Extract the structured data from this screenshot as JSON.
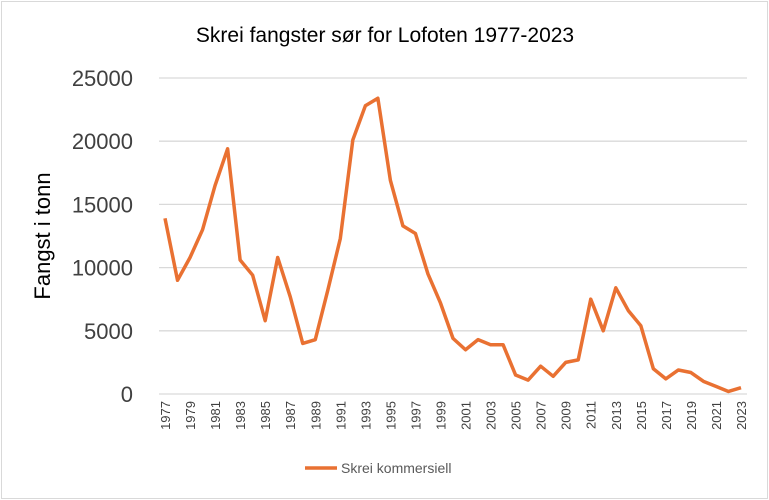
{
  "chart_data": {
    "type": "line",
    "title": "Skrei fangster sør for Lofoten 1977-2023",
    "xlabel": "",
    "ylabel": "Fangst i tonn",
    "ylim": [
      0,
      25000
    ],
    "yticks": [
      0,
      5000,
      10000,
      15000,
      20000,
      25000
    ],
    "grid": true,
    "legend": "bottom",
    "color": "#E97132",
    "x": [
      1977,
      1978,
      1979,
      1980,
      1981,
      1982,
      1983,
      1984,
      1985,
      1986,
      1987,
      1988,
      1989,
      1990,
      1991,
      1992,
      1993,
      1994,
      1995,
      1996,
      1997,
      1998,
      1999,
      2000,
      2001,
      2002,
      2003,
      2004,
      2005,
      2006,
      2007,
      2008,
      2009,
      2010,
      2011,
      2012,
      2013,
      2014,
      2015,
      2016,
      2017,
      2018,
      2019,
      2020,
      2021,
      2022,
      2023
    ],
    "xtick_labels": [
      "1977",
      "1979",
      "1981",
      "1983",
      "1985",
      "1987",
      "1989",
      "1991",
      "1993",
      "1995",
      "1997",
      "1999",
      "2001",
      "2003",
      "2005",
      "2007",
      "2009",
      "2011",
      "2013",
      "2015",
      "2017",
      "2019",
      "2021",
      "2023"
    ],
    "series": [
      {
        "name": "Skrei kommersiell",
        "values": [
          13900,
          9000,
          10800,
          13000,
          16500,
          19400,
          10600,
          9400,
          5800,
          10800,
          7700,
          4000,
          4300,
          8200,
          12300,
          20100,
          22800,
          23400,
          16900,
          13300,
          12700,
          9500,
          7200,
          4400,
          3500,
          4300,
          3900,
          3900,
          1500,
          1100,
          2200,
          1400,
          2500,
          2700,
          7500,
          5000,
          8400,
          6600,
          5400,
          2000,
          1200,
          1900,
          1700,
          1000,
          600,
          200,
          500
        ]
      }
    ]
  }
}
